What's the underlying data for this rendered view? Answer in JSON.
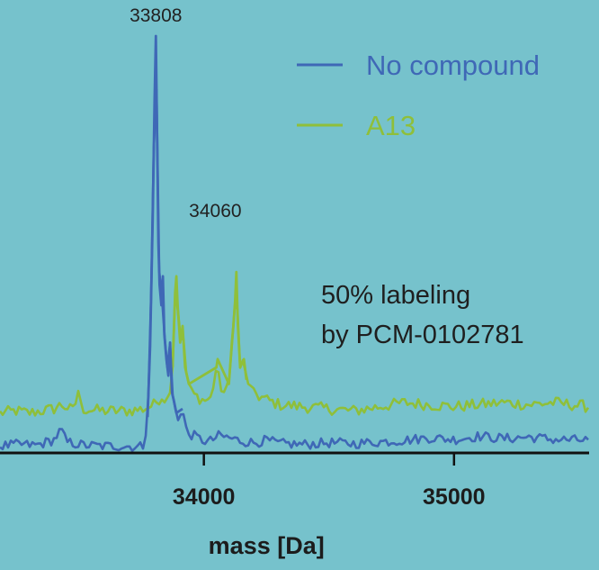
{
  "colors": {
    "background": "#76c2cc",
    "series_no_compound": "#3f68b6",
    "series_a13": "#8fbf3a",
    "axis": "#111111"
  },
  "annotation": {
    "line1": "50% labeling",
    "line2": "by PCM-0102781"
  },
  "chart_data": {
    "type": "line",
    "title": "",
    "xlabel": "mass [Da]",
    "ylabel": "",
    "xlim": [
      33185,
      35540
    ],
    "ylim": [
      -6,
      100
    ],
    "grid": false,
    "legend_placement": "top-right",
    "x_ticks": [
      {
        "value": 34000,
        "label": "34000"
      },
      {
        "value": 35000,
        "label": "35000"
      }
    ],
    "peak_labels": [
      {
        "x": 33808,
        "y": 100,
        "text": "33808"
      },
      {
        "x": 34060,
        "y": 42,
        "text": "34060"
      }
    ],
    "series": [
      {
        "name": "No compound",
        "color": "#3f68b6",
        "baseline": 1,
        "noise": 1.2,
        "points": [
          [
            33185,
            1.0
          ],
          [
            33260,
            1.4
          ],
          [
            33330,
            1.2
          ],
          [
            33400,
            2.5
          ],
          [
            33430,
            5.0
          ],
          [
            33450,
            2.0
          ],
          [
            33520,
            1.2
          ],
          [
            33600,
            1.0
          ],
          [
            33680,
            1.0
          ],
          [
            33740,
            0.8
          ],
          [
            33760,
            1.2
          ],
          [
            33775,
            8.0
          ],
          [
            33785,
            25.0
          ],
          [
            33795,
            55.0
          ],
          [
            33803,
            85.0
          ],
          [
            33808,
            100.0
          ],
          [
            33813,
            75.0
          ],
          [
            33818,
            50.0
          ],
          [
            33823,
            40.0
          ],
          [
            33830,
            35.0
          ],
          [
            33836,
            42.0
          ],
          [
            33842,
            28.0
          ],
          [
            33850,
            22.0
          ],
          [
            33858,
            18.0
          ],
          [
            33865,
            26.0
          ],
          [
            33872,
            14.0
          ],
          [
            33880,
            12.0
          ],
          [
            33890,
            9.0
          ],
          [
            33900,
            7.0
          ],
          [
            33915,
            10.0
          ],
          [
            33925,
            6.0
          ],
          [
            33940,
            4.0
          ],
          [
            33960,
            3.5
          ],
          [
            33990,
            2.5
          ],
          [
            34020,
            2.0
          ],
          [
            34060,
            3.5
          ],
          [
            34100,
            3.0
          ],
          [
            34150,
            2.2
          ],
          [
            34200,
            1.8
          ],
          [
            34250,
            2.4
          ],
          [
            34300,
            1.6
          ],
          [
            34400,
            1.4
          ],
          [
            34500,
            1.8
          ],
          [
            34600,
            1.6
          ],
          [
            34700,
            2.0
          ],
          [
            34800,
            2.4
          ],
          [
            34900,
            3.0
          ],
          [
            35000,
            2.6
          ],
          [
            35100,
            3.4
          ],
          [
            35200,
            2.8
          ],
          [
            35300,
            3.2
          ],
          [
            35400,
            2.6
          ],
          [
            35540,
            2.4
          ]
        ]
      },
      {
        "name": "A13",
        "color": "#8fbf3a",
        "baseline": 9.5,
        "noise": 1.4,
        "points": [
          [
            33185,
            9.0
          ],
          [
            33250,
            9.5
          ],
          [
            33300,
            9.0
          ],
          [
            33400,
            10.0
          ],
          [
            33430,
            11.0
          ],
          [
            33480,
            9.5
          ],
          [
            33500,
            15.0
          ],
          [
            33510,
            10.0
          ],
          [
            33600,
            9.5
          ],
          [
            33700,
            9.5
          ],
          [
            33760,
            10.0
          ],
          [
            33800,
            11.0
          ],
          [
            33830,
            13.0
          ],
          [
            33860,
            12.0
          ],
          [
            33875,
            20.0
          ],
          [
            33885,
            38.0
          ],
          [
            33890,
            42.0
          ],
          [
            33895,
            35.0
          ],
          [
            33905,
            26.0
          ],
          [
            33915,
            30.0
          ],
          [
            33925,
            20.0
          ],
          [
            33940,
            16.0
          ],
          [
            33955,
            14.0
          ],
          [
            33970,
            13.0
          ],
          [
            34000,
            12.0
          ],
          [
            34030,
            12.5
          ],
          [
            34050,
            20.0
          ],
          [
            34055,
            22.0
          ],
          [
            34062,
            15.0
          ],
          [
            34080,
            14.0
          ],
          [
            34100,
            16.0
          ],
          [
            34112,
            26.0
          ],
          [
            34118,
            30.0
          ],
          [
            34125,
            36.0
          ],
          [
            34130,
            43.0
          ],
          [
            34136,
            30.0
          ],
          [
            34145,
            20.0
          ],
          [
            34160,
            22.0
          ],
          [
            34170,
            17.0
          ],
          [
            34190,
            15.0
          ],
          [
            34220,
            13.0
          ],
          [
            34260,
            12.0
          ],
          [
            34300,
            11.0
          ],
          [
            34400,
            10.5
          ],
          [
            34500,
            10.0
          ],
          [
            34600,
            9.5
          ],
          [
            34700,
            10.5
          ],
          [
            34800,
            11.5
          ],
          [
            34900,
            11.0
          ],
          [
            35000,
            10.5
          ],
          [
            35100,
            11.0
          ],
          [
            35200,
            11.5
          ],
          [
            35300,
            11.0
          ],
          [
            35400,
            11.5
          ],
          [
            35540,
            10.5
          ]
        ]
      }
    ]
  }
}
